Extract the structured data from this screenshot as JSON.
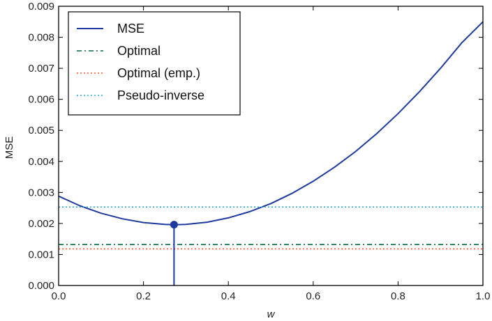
{
  "chart_data": {
    "type": "line",
    "xlabel": "w",
    "ylabel": "MSE",
    "xlim": [
      0.0,
      1.0
    ],
    "ylim": [
      0.0,
      0.009
    ],
    "x_ticks": [
      "0.0",
      "0.2",
      "0.4",
      "0.6",
      "0.8",
      "1.0"
    ],
    "y_ticks": [
      "0.000",
      "0.001",
      "0.002",
      "0.003",
      "0.004",
      "0.005",
      "0.006",
      "0.007",
      "0.008",
      "0.009"
    ],
    "grid": false,
    "legend_position": "top-left",
    "series": [
      {
        "name": "MSE",
        "style": "solid",
        "color": "#1f3a9e",
        "x": [
          0.0,
          0.05,
          0.1,
          0.15,
          0.2,
          0.25,
          0.272,
          0.3,
          0.35,
          0.4,
          0.45,
          0.5,
          0.55,
          0.6,
          0.65,
          0.7,
          0.75,
          0.8,
          0.85,
          0.9,
          0.95,
          1.0
        ],
        "y": [
          0.00288,
          0.00257,
          0.00233,
          0.00215,
          0.00203,
          0.00197,
          0.00196,
          0.00197,
          0.00204,
          0.00218,
          0.00238,
          0.00264,
          0.00297,
          0.00336,
          0.00381,
          0.00432,
          0.0049,
          0.00554,
          0.00624,
          0.007,
          0.00782,
          0.0085
        ]
      },
      {
        "name": "Optimal",
        "style": "dashdot",
        "color": "#006b3c",
        "x": [
          0.0,
          1.0
        ],
        "y": [
          0.00132,
          0.00132
        ]
      },
      {
        "name": "Optimal (emp.)",
        "style": "dotted",
        "color": "#ff5a2d",
        "x": [
          0.0,
          1.0
        ],
        "y": [
          0.00118,
          0.00118
        ]
      },
      {
        "name": "Pseudo-inverse",
        "style": "dotted",
        "color": "#2aa7d6",
        "x": [
          0.0,
          1.0
        ],
        "y": [
          0.00253,
          0.00253
        ]
      }
    ],
    "marker": {
      "x": 0.272,
      "y": 0.00196,
      "color": "#1f3a9e"
    }
  }
}
